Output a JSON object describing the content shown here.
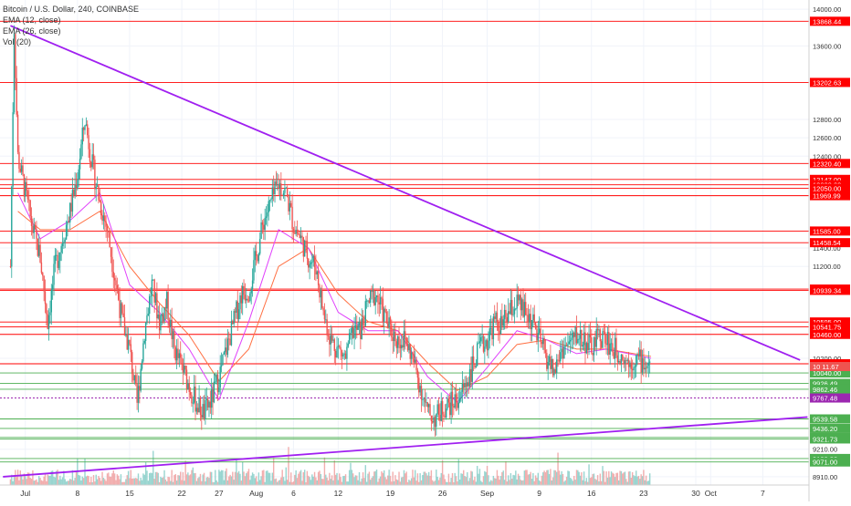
{
  "legend": {
    "symbol": "Bitcoin / U.S. Dollar, 240, COINBASE",
    "ema12": "EMA (12, close)",
    "ema26": "EMA (26, close)",
    "volume": "Vol (20)"
  },
  "colors": {
    "background": "#ffffff",
    "up": "#26a69a",
    "down": "#ef5350",
    "resistance": "#ff0000",
    "support": "#4caf50",
    "trendline": "#a020f0",
    "pivot_dotted": "#9c27b0",
    "ema_fast": "#e040fb",
    "ema_slow": "#ff7043",
    "axis_text": "#333333",
    "volume_up": "#80cbc4",
    "volume_down": "#ef9a9a"
  },
  "chart_data": {
    "type": "candlestick",
    "title": "Bitcoin / U.S. Dollar, 240, COINBASE",
    "ylim": [
      8820,
      14100
    ],
    "y_ticks": [
      {
        "label": "14000.00",
        "value": 14000
      },
      {
        "label": "13600.00",
        "value": 13600
      },
      {
        "label": "12800.00",
        "value": 12800
      },
      {
        "label": "12600.00",
        "value": 12600
      },
      {
        "label": "12400.00",
        "value": 12400
      },
      {
        "label": "11400.00",
        "value": 11400
      },
      {
        "label": "11200.00",
        "value": 11200
      },
      {
        "label": "10200.00",
        "value": 10200
      },
      {
        "label": "9210.00",
        "value": 9210
      },
      {
        "label": "8910.00",
        "value": 8910
      }
    ],
    "x_ticks": [
      {
        "label": "Jul",
        "t": 2
      },
      {
        "label": "8",
        "t": 9
      },
      {
        "label": "15",
        "t": 16
      },
      {
        "label": "22",
        "t": 23
      },
      {
        "label": "27",
        "t": 28
      },
      {
        "label": "Aug",
        "t": 33
      },
      {
        "label": "6",
        "t": 38
      },
      {
        "label": "12",
        "t": 44
      },
      {
        "label": "19",
        "t": 51
      },
      {
        "label": "26",
        "t": 58
      },
      {
        "label": "Sep",
        "t": 64
      },
      {
        "label": "9",
        "t": 71
      },
      {
        "label": "16",
        "t": 78
      },
      {
        "label": "23",
        "t": 85
      },
      {
        "label": "30",
        "t": 92
      },
      {
        "label": "Oct",
        "t": 94
      },
      {
        "label": "7",
        "t": 101
      }
    ],
    "xlim": [
      -1.4,
      107.2
    ],
    "price_levels": [
      {
        "label": "13868.44",
        "value": 13868.44,
        "kind": "resistance"
      },
      {
        "label": "13202.63",
        "value": 13202.63,
        "kind": "resistance"
      },
      {
        "label": "12320.40",
        "value": 12320.4,
        "kind": "resistance"
      },
      {
        "label": "12147.00",
        "value": 12147.0,
        "kind": "resistance"
      },
      {
        "label": "12088.00",
        "value": 12088.0,
        "kind": "resistance"
      },
      {
        "label": "12050.00",
        "value": 12050.0,
        "kind": "resistance"
      },
      {
        "label": "11969.99",
        "value": 11969.99,
        "kind": "resistance"
      },
      {
        "label": "11585.00",
        "value": 11585.0,
        "kind": "resistance"
      },
      {
        "label": "11458.54",
        "value": 11458.54,
        "kind": "resistance"
      },
      {
        "label": "10953.00",
        "value": 10953.0,
        "kind": "resistance"
      },
      {
        "label": "10939.34",
        "value": 10939.34,
        "kind": "resistance"
      },
      {
        "label": "10595.00",
        "value": 10595.0,
        "kind": "resistance"
      },
      {
        "label": "10541.75",
        "value": 10541.75,
        "kind": "resistance"
      },
      {
        "label": "10460.00",
        "value": 10460.0,
        "kind": "resistance"
      },
      {
        "label": "10140.07",
        "value": 10140.07,
        "kind": "resistance"
      },
      {
        "label": "10040.00",
        "value": 10040.0,
        "kind": "support"
      },
      {
        "label": "9926.49",
        "value": 9926.49,
        "kind": "support"
      },
      {
        "label": "9862.46",
        "value": 9862.46,
        "kind": "support"
      },
      {
        "label": "9767.48",
        "value": 9767.48,
        "kind": "pivot"
      },
      {
        "label": "9539.58",
        "value": 9539.58,
        "kind": "support"
      },
      {
        "label": "9436.20",
        "value": 9436.2,
        "kind": "support"
      },
      {
        "label": "9337.97",
        "value": 9337.97,
        "kind": "support"
      },
      {
        "label": "9321.73",
        "value": 9321.73,
        "kind": "support"
      },
      {
        "label": "9108.88",
        "value": 9108.88,
        "kind": "support"
      },
      {
        "label": "9071.00",
        "value": 9071.0,
        "kind": "support"
      }
    ],
    "current_price": {
      "label": "10 11.67",
      "value": 10110
    },
    "trendlines": [
      {
        "name": "descending resistance",
        "t": [
          0,
          106
        ],
        "y": [
          13820,
          10180
        ]
      },
      {
        "name": "ascending support",
        "t": [
          -1,
          107
        ],
        "y": [
          8910,
          9560
        ]
      }
    ],
    "price_path": {
      "t": [
        0,
        0.5,
        1,
        2,
        3,
        4,
        5,
        6,
        7,
        8,
        9,
        10,
        11,
        12,
        13,
        14,
        15,
        16,
        17,
        18,
        19,
        20,
        21,
        22,
        23,
        24,
        25,
        26,
        27,
        28,
        29,
        30,
        31,
        32,
        33,
        34,
        35,
        36,
        37,
        38,
        39,
        40,
        41,
        42,
        43,
        44,
        45,
        46,
        47,
        48,
        49,
        50,
        51,
        52,
        53,
        54,
        55,
        56,
        57,
        58,
        59,
        60,
        61,
        62,
        63,
        64,
        65,
        66,
        67,
        68,
        69,
        70,
        71,
        72,
        73,
        74,
        75,
        76,
        77,
        78,
        79,
        80,
        81,
        82,
        83,
        84,
        85,
        86
      ],
      "close": [
        11200,
        13800,
        12400,
        12000,
        11600,
        11300,
        10600,
        11200,
        11500,
        11800,
        12200,
        12800,
        12300,
        11900,
        11600,
        11100,
        10600,
        10300,
        9700,
        10500,
        11000,
        10600,
        10800,
        10300,
        10100,
        9900,
        9700,
        9600,
        9750,
        10000,
        10300,
        10600,
        10900,
        10950,
        11300,
        11700,
        11900,
        12100,
        12000,
        11650,
        11500,
        11300,
        11200,
        10700,
        10400,
        10300,
        10200,
        10500,
        10500,
        10800,
        10900,
        10700,
        10500,
        10400,
        10400,
        10200,
        9900,
        9600,
        9550,
        9650,
        9700,
        9750,
        9900,
        10100,
        10300,
        10400,
        10600,
        10550,
        10700,
        10800,
        10700,
        10600,
        10400,
        10200,
        10050,
        10300,
        10350,
        10450,
        10400,
        10300,
        10450,
        10400,
        10300,
        10250,
        10150,
        10200,
        10150,
        10100
      ]
    },
    "ema12_path": {
      "t": [
        1,
        4,
        8,
        12,
        16,
        20,
        24,
        28,
        32,
        36,
        40,
        44,
        48,
        52,
        56,
        60,
        64,
        68,
        72,
        76,
        80,
        86
      ],
      "y": [
        12000,
        11500,
        11700,
        12000,
        11000,
        10700,
        10300,
        9750,
        10600,
        11600,
        11400,
        10700,
        10500,
        10500,
        10000,
        9720,
        10100,
        10500,
        10400,
        10250,
        10300,
        10200
      ]
    },
    "ema26_path": {
      "t": [
        1,
        4,
        8,
        12,
        16,
        20,
        24,
        28,
        32,
        36,
        40,
        44,
        48,
        52,
        56,
        60,
        64,
        68,
        72,
        76,
        80,
        86
      ],
      "y": [
        11800,
        11600,
        11600,
        11800,
        11200,
        10800,
        10450,
        9950,
        10300,
        11200,
        11400,
        10900,
        10600,
        10500,
        10150,
        9850,
        10000,
        10350,
        10400,
        10300,
        10300,
        10220
      ]
    }
  }
}
